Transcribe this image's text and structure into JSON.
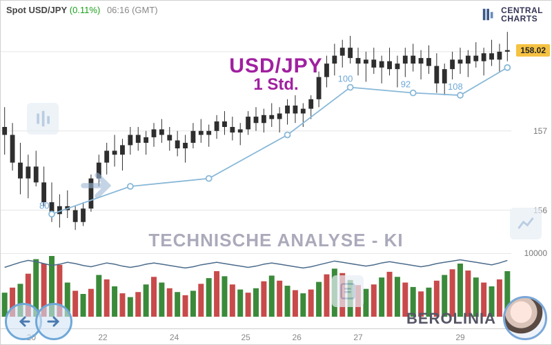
{
  "header": {
    "pair_label": "Spot USD/JPY",
    "pct_change": "(0.11%)",
    "time_label": "06:16 (GMT)"
  },
  "logo": {
    "line1": "CENTRAL",
    "line2": "CHARTS"
  },
  "title": {
    "line1": "USD/JPY",
    "line2": "1 Std."
  },
  "subtitle": "TECHNISCHE  ANALYSE - KI",
  "brand": "BEROLINIA",
  "price_chart": {
    "type": "candlestick+line",
    "ylim": [
      155.7,
      158.4
    ],
    "y_ticks": [
      156,
      157,
      158
    ],
    "last_price": 158.02,
    "background_color": "#ffffff",
    "grid_color": "#e5e5e5",
    "candle_up_color": "#2e2e2e",
    "candle_down_color": "#2e2e2e",
    "wick_color": "#2e2e2e",
    "overlay_line_color": "#88b8d8",
    "overlay_marker_color": "#88b8d8",
    "overlay_labels_color": "#6fa8d8",
    "candles_ohlc": [
      [
        157.05,
        157.3,
        156.7,
        156.95
      ],
      [
        156.95,
        157.1,
        156.5,
        156.6
      ],
      [
        156.6,
        156.85,
        156.2,
        156.4
      ],
      [
        156.4,
        156.7,
        156.15,
        156.55
      ],
      [
        156.55,
        156.75,
        156.3,
        156.35
      ],
      [
        156.35,
        156.55,
        156.05,
        156.1
      ],
      [
        156.1,
        156.35,
        155.85,
        155.95
      ],
      [
        155.95,
        156.2,
        155.78,
        156.05
      ],
      [
        156.05,
        156.25,
        155.9,
        156.0
      ],
      [
        156.0,
        156.05,
        155.75,
        155.85
      ],
      [
        155.85,
        156.1,
        155.8,
        156.02
      ],
      [
        156.02,
        156.45,
        155.98,
        156.4
      ],
      [
        156.4,
        156.7,
        156.3,
        156.6
      ],
      [
        156.6,
        156.85,
        156.45,
        156.75
      ],
      [
        156.75,
        156.95,
        156.55,
        156.7
      ],
      [
        156.7,
        156.9,
        156.5,
        156.82
      ],
      [
        156.82,
        157.05,
        156.7,
        156.95
      ],
      [
        156.95,
        157.05,
        156.75,
        156.85
      ],
      [
        156.85,
        157.0,
        156.7,
        156.92
      ],
      [
        156.92,
        157.1,
        156.8,
        157.02
      ],
      [
        157.02,
        157.15,
        156.85,
        156.95
      ],
      [
        156.95,
        157.05,
        156.75,
        156.88
      ],
      [
        156.88,
        157.0,
        156.68,
        156.78
      ],
      [
        156.78,
        156.95,
        156.6,
        156.85
      ],
      [
        156.85,
        157.1,
        156.78,
        157.0
      ],
      [
        157.0,
        157.15,
        156.85,
        156.95
      ],
      [
        156.95,
        157.08,
        156.8,
        157.0
      ],
      [
        157.0,
        157.2,
        156.9,
        157.12
      ],
      [
        157.12,
        157.25,
        156.95,
        157.05
      ],
      [
        157.05,
        157.18,
        156.88,
        156.98
      ],
      [
        156.98,
        157.1,
        156.82,
        157.02
      ],
      [
        157.02,
        157.25,
        156.95,
        157.18
      ],
      [
        157.18,
        157.3,
        157.0,
        157.1
      ],
      [
        157.1,
        157.28,
        156.98,
        157.2
      ],
      [
        157.2,
        157.35,
        157.05,
        157.15
      ],
      [
        157.15,
        157.3,
        156.98,
        157.22
      ],
      [
        157.22,
        157.4,
        157.08,
        157.32
      ],
      [
        157.32,
        157.45,
        157.1,
        157.22
      ],
      [
        157.22,
        157.35,
        157.05,
        157.28
      ],
      [
        157.28,
        157.45,
        157.15,
        157.4
      ],
      [
        157.4,
        157.75,
        157.3,
        157.68
      ],
      [
        157.68,
        157.95,
        157.55,
        157.85
      ],
      [
        157.85,
        158.1,
        157.7,
        157.95
      ],
      [
        157.95,
        158.15,
        157.8,
        158.05
      ],
      [
        158.05,
        158.2,
        157.85,
        157.92
      ],
      [
        157.92,
        158.05,
        157.7,
        157.85
      ],
      [
        157.85,
        158.0,
        157.62,
        157.9
      ],
      [
        157.9,
        158.05,
        157.72,
        157.8
      ],
      [
        157.8,
        157.95,
        157.6,
        157.88
      ],
      [
        157.88,
        158.05,
        157.7,
        157.78
      ],
      [
        157.78,
        157.95,
        157.55,
        157.85
      ],
      [
        157.85,
        158.05,
        157.68,
        157.95
      ],
      [
        157.95,
        158.1,
        157.75,
        157.85
      ],
      [
        157.85,
        158.02,
        157.65,
        157.92
      ],
      [
        157.92,
        158.08,
        157.72,
        157.82
      ],
      [
        157.82,
        157.98,
        157.48,
        157.6
      ],
      [
        157.6,
        157.85,
        157.45,
        157.78
      ],
      [
        157.78,
        158.0,
        157.65,
        157.9
      ],
      [
        157.9,
        158.05,
        157.72,
        157.85
      ],
      [
        157.85,
        158.02,
        157.68,
        157.95
      ],
      [
        157.95,
        158.12,
        157.8,
        157.88
      ],
      [
        157.88,
        158.05,
        157.7,
        157.98
      ],
      [
        157.98,
        158.15,
        157.82,
        157.9
      ],
      [
        157.9,
        158.1,
        157.75,
        158.0
      ],
      [
        158.0,
        158.25,
        157.88,
        158.02
      ]
    ],
    "overlay_points": [
      {
        "i": 6,
        "y": 155.95,
        "label": "80"
      },
      {
        "i": 16,
        "y": 156.3,
        "label": ""
      },
      {
        "i": 26,
        "y": 156.4,
        "label": ""
      },
      {
        "i": 36,
        "y": 156.95,
        "label": ""
      },
      {
        "i": 44,
        "y": 157.55,
        "label": "100"
      },
      {
        "i": 52,
        "y": 157.48,
        "label": "92"
      },
      {
        "i": 58,
        "y": 157.45,
        "label": "108"
      },
      {
        "i": 64,
        "y": 157.8,
        "label": ""
      }
    ]
  },
  "volume_chart": {
    "type": "bar+line",
    "ylim": [
      0,
      12000
    ],
    "y_ticks": [
      0,
      10000
    ],
    "line_color": "#4a6a8a",
    "bar_colors_cycle": [
      "#3a8a3a",
      "#c84a4a"
    ],
    "bars": [
      3800,
      4600,
      5200,
      6800,
      9100,
      8400,
      9600,
      8200,
      5400,
      4100,
      3600,
      4400,
      6600,
      5900,
      4800,
      3700,
      3100,
      3900,
      5100,
      6300,
      5400,
      4500,
      3900,
      3400,
      4100,
      5200,
      6100,
      7200,
      6400,
      5100,
      4300,
      3800,
      4500,
      5600,
      6500,
      5700,
      4900,
      4200,
      3700,
      4300,
      5500,
      6700,
      7600,
      6900,
      5800,
      5000,
      4400,
      5100,
      6200,
      7100,
      6300,
      5400,
      4700,
      4000,
      4600,
      5700,
      6600,
      7500,
      8400,
      7300,
      6200,
      5400,
      4800,
      5900,
      7200
    ],
    "line_values": [
      7800,
      8200,
      8600,
      8900,
      8700,
      8400,
      8100,
      8300,
      8600,
      8400,
      8100,
      7900,
      8200,
      8500,
      8300,
      8000,
      7800,
      8000,
      8300,
      8500,
      8300,
      8100,
      7900,
      7700,
      7900,
      8200,
      8400,
      8600,
      8400,
      8200,
      8000,
      7800,
      8000,
      8300,
      8500,
      8300,
      8100,
      7900,
      7700,
      7900,
      8200,
      8500,
      8800,
      8600,
      8400,
      8200,
      8000,
      8200,
      8500,
      8700,
      8500,
      8300,
      8100,
      7900,
      8100,
      8400,
      8600,
      8800,
      9000,
      8800,
      8600,
      8400,
      8200,
      8500,
      8900
    ]
  },
  "x_axis": {
    "tick_labels": [
      "20",
      "22",
      "24",
      "25",
      "26",
      "27",
      "29"
    ],
    "tick_positions_pct": [
      6,
      20,
      34,
      48,
      58,
      70,
      90
    ]
  },
  "colors": {
    "axis_text": "#777777",
    "last_badge_bg": "#f5c242",
    "title_color": "#a020a0",
    "subtitle_color": "#a8aec2"
  }
}
